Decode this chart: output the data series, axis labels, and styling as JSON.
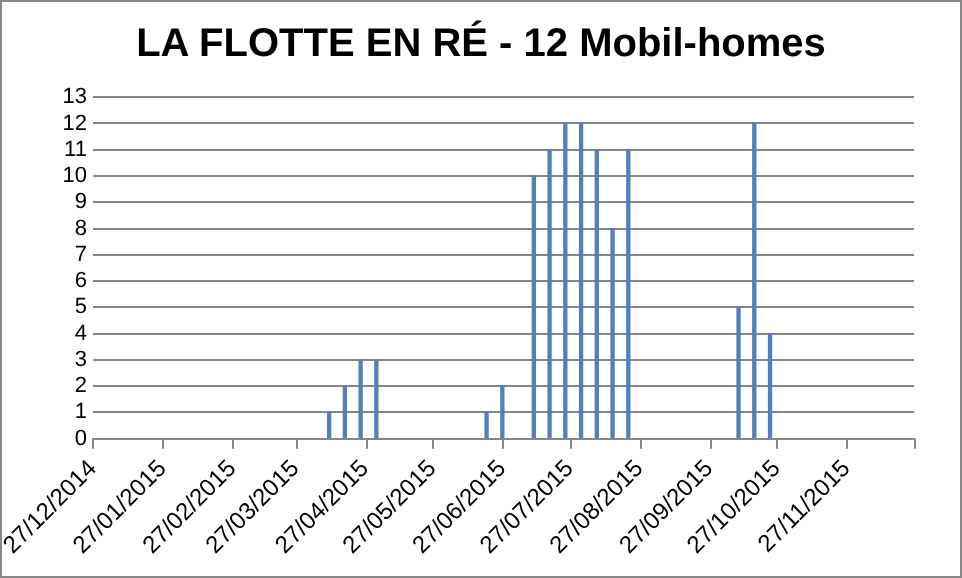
{
  "chart_data": {
    "type": "bar",
    "title": "LA FLOTTE EN RÉ - 12 Mobil-homes",
    "x": [
      "2015-04-11",
      "2015-04-18",
      "2015-04-25",
      "2015-05-02",
      "2015-06-20",
      "2015-06-27",
      "2015-07-11",
      "2015-07-18",
      "2015-07-25",
      "2015-08-01",
      "2015-08-08",
      "2015-08-15",
      "2015-08-22",
      "2015-10-10",
      "2015-10-17",
      "2015-10-24"
    ],
    "values": [
      1,
      2,
      3,
      3,
      1,
      2,
      10,
      11,
      12,
      12,
      11,
      8,
      11,
      5,
      12,
      4
    ],
    "color": "#4f81bd",
    "xlim": [
      "2014-12-27",
      "2015-12-27"
    ],
    "xticks": [
      {
        "value": "2014-12-27",
        "label": "27/12/2014"
      },
      {
        "value": "2015-01-27",
        "label": "27/01/2015"
      },
      {
        "value": "2015-02-27",
        "label": "27/02/2015"
      },
      {
        "value": "2015-03-27",
        "label": "27/03/2015"
      },
      {
        "value": "2015-04-27",
        "label": "27/04/2015"
      },
      {
        "value": "2015-05-27",
        "label": "27/05/2015"
      },
      {
        "value": "2015-06-27",
        "label": "27/06/2015"
      },
      {
        "value": "2015-07-27",
        "label": "27/07/2015"
      },
      {
        "value": "2015-08-27",
        "label": "27/08/2015"
      },
      {
        "value": "2015-09-27",
        "label": "27/09/2015"
      },
      {
        "value": "2015-10-27",
        "label": "27/10/2015"
      },
      {
        "value": "2015-11-27",
        "label": "27/11/2015"
      },
      {
        "value": "2015-12-27",
        "label": null
      }
    ],
    "ylim": [
      0,
      13
    ],
    "yticks": [
      0,
      1,
      2,
      3,
      4,
      5,
      6,
      7,
      8,
      9,
      10,
      11,
      12,
      13
    ],
    "grid": "y",
    "legend": false
  }
}
